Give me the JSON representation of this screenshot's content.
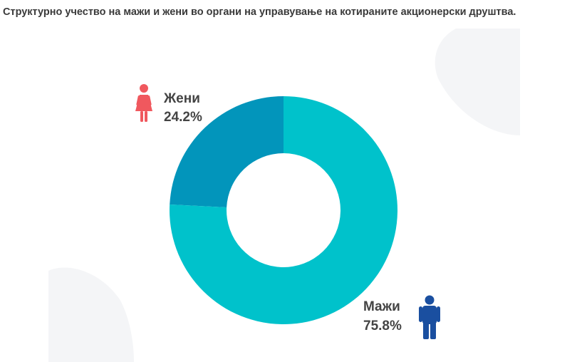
{
  "title": "Структурно учество на мажи и жени во органи на управување на котираните акционерски друштва.",
  "colors": {
    "women": "#0295BB",
    "men": "#00C2CB",
    "women_icon": "#F0585E",
    "men_icon": "#1A4FA0",
    "text": "#444444"
  },
  "chart_data": {
    "type": "pie",
    "donut": true,
    "title": "Структурно учество на мажи и жени во органи на управување на котираните акционерски друштва.",
    "categories": [
      "Жени",
      "Мажи"
    ],
    "values": [
      24.2,
      75.8
    ],
    "labels": [
      {
        "name": "Жени",
        "value_label": "24.2%",
        "icon": "woman-icon"
      },
      {
        "name": "Мажи",
        "value_label": "75.8%",
        "icon": "man-icon"
      }
    ],
    "legend": "none"
  }
}
